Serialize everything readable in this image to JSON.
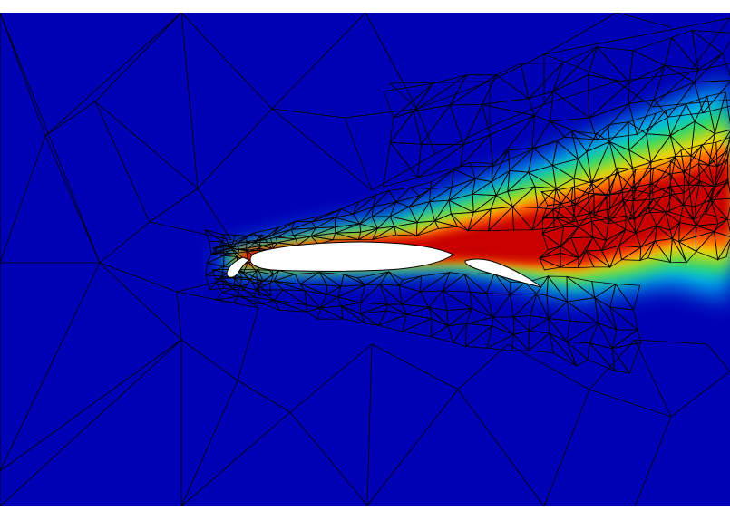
{
  "figure": {
    "colors": {
      "background_field": "#0000b4",
      "colormap": [
        "#0000b4",
        "#0050ff",
        "#00c8ff",
        "#00e070",
        "#a0e000",
        "#ffe000",
        "#ff7000",
        "#e01000",
        "#c80000"
      ],
      "airfoil_fill": "#ffffff",
      "mesh_line": "#000000",
      "page_background": "#ffffff"
    },
    "elements": [
      "slat",
      "main-element",
      "flap"
    ]
  }
}
